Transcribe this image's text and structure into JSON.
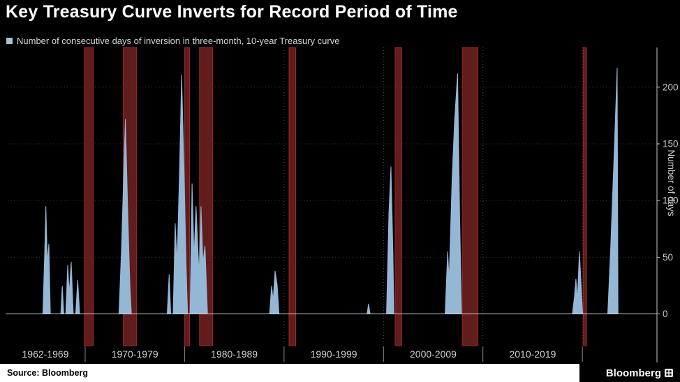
{
  "title": "Key Treasury Curve Inverts for Record Period of Time",
  "legend": {
    "label": "Number of consecutive days of inversion in three-month, 10-year Treasury curve",
    "swatch_color": "#a5c2dd"
  },
  "footer": {
    "source": "Source: Bloomberg",
    "brand": "Bloomberg"
  },
  "chart_data": {
    "type": "area",
    "title": "Key Treasury Curve Inverts for Record Period of Time",
    "subtitle": "Number of consecutive days of inversion in three-month, 10-year Treasury curve",
    "xlabel": "",
    "ylabel": "Number of days",
    "x_domain": [
      1962,
      2027.5
    ],
    "y_domain": [
      -28,
      235
    ],
    "y_ticks": [
      0,
      50,
      100,
      150,
      200
    ],
    "x_boundaries": [
      1962,
      1970,
      1980,
      1990,
      2000,
      2010,
      2020
    ],
    "x_labels": [
      "1962-1969",
      "1970-1979",
      "1980-1989",
      "1990-1999",
      "2000-2009",
      "2010-2019"
    ],
    "grid": "dotted-vertical-at-decades",
    "legend_position": "top-left",
    "axis_side": "right",
    "series_color": "#94b7d6",
    "recession_color": "#621c1c",
    "recession_edge": "#962828",
    "zero_line_color": "#d9d9d9",
    "recessions": [
      [
        1969.92,
        1970.83
      ],
      [
        1973.83,
        1975.17
      ],
      [
        1980.0,
        1980.5
      ],
      [
        1981.5,
        1982.83
      ],
      [
        1990.5,
        1991.17
      ],
      [
        2001.17,
        2001.83
      ],
      [
        2007.92,
        2009.5
      ],
      [
        2020.08,
        2020.42
      ]
    ],
    "points": [
      [
        1962,
        0
      ],
      [
        1965.75,
        0
      ],
      [
        1965.95,
        60
      ],
      [
        1966.05,
        95
      ],
      [
        1966.2,
        45
      ],
      [
        1966.35,
        62
      ],
      [
        1966.5,
        0
      ],
      [
        1967.55,
        0
      ],
      [
        1967.7,
        25
      ],
      [
        1967.85,
        0
      ],
      [
        1968.05,
        0
      ],
      [
        1968.25,
        43
      ],
      [
        1968.4,
        18
      ],
      [
        1968.6,
        46
      ],
      [
        1968.8,
        0
      ],
      [
        1969.05,
        0
      ],
      [
        1969.25,
        30
      ],
      [
        1969.45,
        0
      ],
      [
        1973.4,
        0
      ],
      [
        1973.65,
        55
      ],
      [
        1973.85,
        115
      ],
      [
        1974.05,
        172
      ],
      [
        1974.3,
        85
      ],
      [
        1974.5,
        25
      ],
      [
        1974.65,
        0
      ],
      [
        1978.25,
        0
      ],
      [
        1978.45,
        35
      ],
      [
        1978.6,
        0
      ],
      [
        1978.85,
        0
      ],
      [
        1979.05,
        80
      ],
      [
        1979.25,
        45
      ],
      [
        1979.5,
        130
      ],
      [
        1979.7,
        211
      ],
      [
        1979.95,
        125
      ],
      [
        1980.15,
        45
      ],
      [
        1980.3,
        0
      ],
      [
        1980.55,
        0
      ],
      [
        1980.75,
        115
      ],
      [
        1980.95,
        50
      ],
      [
        1981.15,
        95
      ],
      [
        1981.45,
        35
      ],
      [
        1981.65,
        95
      ],
      [
        1981.85,
        45
      ],
      [
        1982.05,
        60
      ],
      [
        1982.3,
        0
      ],
      [
        1988.55,
        0
      ],
      [
        1988.75,
        25
      ],
      [
        1988.9,
        12
      ],
      [
        1989.1,
        38
      ],
      [
        1989.3,
        26
      ],
      [
        1989.5,
        0
      ],
      [
        1998.35,
        0
      ],
      [
        1998.5,
        9
      ],
      [
        1998.65,
        0
      ],
      [
        2000.3,
        0
      ],
      [
        2000.55,
        90
      ],
      [
        2000.75,
        130
      ],
      [
        2000.95,
        55
      ],
      [
        2001.05,
        0
      ],
      [
        2006.2,
        0
      ],
      [
        2006.45,
        55
      ],
      [
        2006.6,
        30
      ],
      [
        2006.9,
        120
      ],
      [
        2007.15,
        170
      ],
      [
        2007.45,
        212
      ],
      [
        2007.65,
        90
      ],
      [
        2007.85,
        0
      ],
      [
        2019,
        0
      ],
      [
        2019.2,
        15
      ],
      [
        2019.35,
        31
      ],
      [
        2019.5,
        12
      ],
      [
        2019.7,
        55
      ],
      [
        2019.9,
        22
      ],
      [
        2020.03,
        0
      ],
      [
        2022.55,
        0
      ],
      [
        2022.85,
        60
      ],
      [
        2023.15,
        130
      ],
      [
        2023.5,
        217
      ],
      [
        2023.58,
        0
      ],
      [
        2027.5,
        0
      ]
    ]
  }
}
